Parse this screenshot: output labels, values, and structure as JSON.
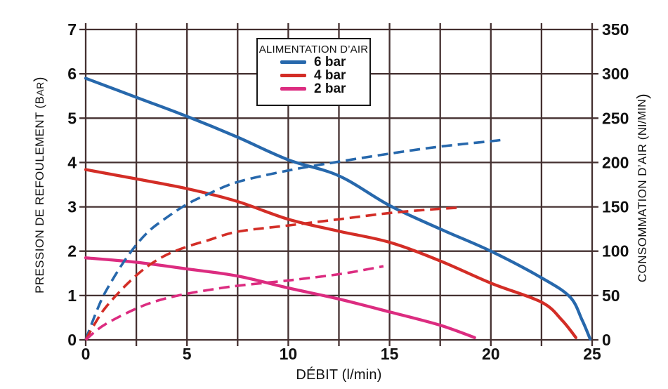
{
  "figure": {
    "background": "#ffffff",
    "text_color": "#111111",
    "grid_color": "#443030"
  },
  "chart_data": {
    "type": "line",
    "title": "",
    "xlabel": "DÉBIT (l/min)",
    "ylabel_left": "PRESSION DE REFOULEMENT (Bar)",
    "ylabel_right": "CONSOMMATION D’AIR (Nl/min)",
    "x_range": [
      0,
      25
    ],
    "x_grid_step": 2.5,
    "x_major_ticks": [
      0,
      5,
      10,
      15,
      20,
      25
    ],
    "y_left_range": [
      0,
      7
    ],
    "y_left_ticks": [
      0,
      1,
      2,
      3,
      4,
      5,
      6,
      7
    ],
    "y_right_range": [
      0,
      350
    ],
    "y_right_ticks": [
      0,
      50,
      100,
      150,
      200,
      250,
      300,
      350
    ],
    "grid": true,
    "legend": {
      "title": "ALIMENTATION D’AIR",
      "position": "top-center",
      "items": [
        {
          "label": "6 bar",
          "color": "#2768ac"
        },
        {
          "label": "4 bar",
          "color": "#d32d26"
        },
        {
          "label": "2 bar",
          "color": "#dc2c80"
        }
      ]
    },
    "series": [
      {
        "id": "pression-6bar",
        "legend": "6 bar",
        "quantity": "pression de refoulement",
        "axis": "left",
        "unit": "bar",
        "style": "solid",
        "color": "#2768ac",
        "points": [
          [
            0,
            5.9
          ],
          [
            2.5,
            5.47
          ],
          [
            5,
            5.04
          ],
          [
            7.5,
            4.57
          ],
          [
            10,
            4.06
          ],
          [
            12.5,
            3.7
          ],
          [
            15,
            3.03
          ],
          [
            17.5,
            2.5
          ],
          [
            20,
            2.0
          ],
          [
            22.5,
            1.4
          ],
          [
            23.9,
            0.97
          ],
          [
            24.5,
            0.45
          ],
          [
            24.9,
            0.02
          ]
        ]
      },
      {
        "id": "pression-4bar",
        "legend": "4 bar",
        "quantity": "pression de refoulement",
        "axis": "left",
        "unit": "bar",
        "style": "solid",
        "color": "#d32d26",
        "points": [
          [
            0,
            3.84
          ],
          [
            2.5,
            3.63
          ],
          [
            5,
            3.41
          ],
          [
            7.5,
            3.12
          ],
          [
            10,
            2.72
          ],
          [
            12.5,
            2.45
          ],
          [
            15,
            2.2
          ],
          [
            17.5,
            1.78
          ],
          [
            20,
            1.28
          ],
          [
            22.5,
            0.85
          ],
          [
            23.5,
            0.45
          ],
          [
            24.2,
            0.05
          ]
        ]
      },
      {
        "id": "pression-2bar",
        "legend": "2 bar",
        "quantity": "pression de refoulement",
        "axis": "left",
        "unit": "bar",
        "style": "solid",
        "color": "#dc2c80",
        "points": [
          [
            0,
            1.85
          ],
          [
            2.5,
            1.75
          ],
          [
            5,
            1.6
          ],
          [
            7.5,
            1.44
          ],
          [
            10,
            1.17
          ],
          [
            12.5,
            0.92
          ],
          [
            15,
            0.63
          ],
          [
            17.5,
            0.33
          ],
          [
            19.2,
            0.05
          ]
        ]
      },
      {
        "id": "air-6bar",
        "legend": "6 bar",
        "quantity": "consommation d’air",
        "axis": "right",
        "unit": "Nl/min",
        "style": "dashed",
        "color": "#2768ac",
        "points": [
          [
            0,
            0
          ],
          [
            0.5,
            30
          ],
          [
            1,
            55
          ],
          [
            2,
            92
          ],
          [
            3,
            120
          ],
          [
            4,
            138
          ],
          [
            5,
            153
          ],
          [
            6,
            164
          ],
          [
            7.5,
            178
          ],
          [
            10,
            191
          ],
          [
            12.5,
            201
          ],
          [
            15,
            210
          ],
          [
            17.5,
            218
          ],
          [
            20,
            224
          ],
          [
            20.7,
            226
          ]
        ]
      },
      {
        "id": "air-4bar",
        "legend": "4 bar",
        "quantity": "consommation d’air",
        "axis": "right",
        "unit": "Nl/min",
        "style": "dashed",
        "color": "#d32d26",
        "points": [
          [
            0,
            0
          ],
          [
            0.5,
            20
          ],
          [
            1,
            37
          ],
          [
            2,
            62
          ],
          [
            3,
            82
          ],
          [
            4,
            96
          ],
          [
            5,
            105
          ],
          [
            6,
            112
          ],
          [
            7.5,
            122
          ],
          [
            10,
            129
          ],
          [
            12.5,
            136
          ],
          [
            15,
            143
          ],
          [
            17,
            147
          ],
          [
            18.4,
            149
          ]
        ]
      },
      {
        "id": "air-2bar",
        "legend": "2 bar",
        "quantity": "consommation d’air",
        "axis": "right",
        "unit": "Nl/min",
        "style": "dashed",
        "color": "#dc2c80",
        "points": [
          [
            0,
            0
          ],
          [
            0.5,
            10
          ],
          [
            1,
            18
          ],
          [
            2,
            30
          ],
          [
            3,
            40
          ],
          [
            4,
            47
          ],
          [
            5,
            52
          ],
          [
            6,
            56
          ],
          [
            7.5,
            61
          ],
          [
            10,
            67
          ],
          [
            12.5,
            74
          ],
          [
            14,
            80
          ],
          [
            14.7,
            83
          ]
        ]
      }
    ]
  },
  "labels": {
    "x_title": "DÉBIT (l/min)",
    "y_left": {
      "pre": "PRESSION DE REFOULEMENT (B",
      "small": "AR",
      "post": ")"
    },
    "y_right": {
      "pre": "CONSOMMATION D’AIR (Nl/",
      "small": "MIN",
      "post": ")"
    }
  }
}
